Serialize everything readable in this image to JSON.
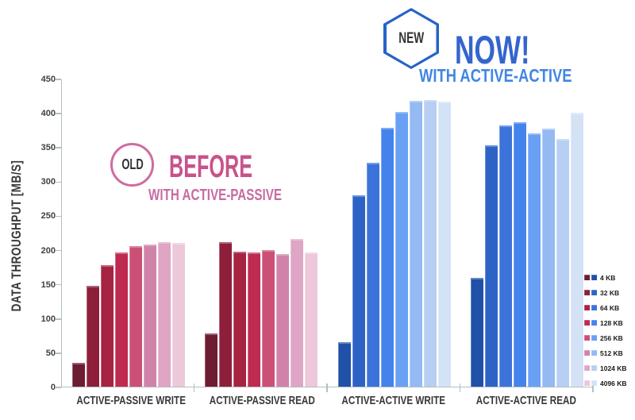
{
  "annotations": {
    "old": {
      "badge": "OLD",
      "title": "BEFORE",
      "subtitle": "WITH ACTIVE-PASSIVE"
    },
    "new": {
      "badge": "NEW",
      "title": "NOW!",
      "subtitle": "WITH ACTIVE-ACTIVE"
    }
  },
  "chart_data": {
    "type": "bar",
    "ylabel": "DATA THROUGHPUT [MB/S]",
    "ylim": [
      0,
      450
    ],
    "ytick_step": 50,
    "grid": false,
    "legend_position": "right",
    "categories": [
      "ACTIVE-PASSIVE WRITE",
      "ACTIVE-PASSIVE READ",
      "ACTIVE-ACTIVE WRITE",
      "ACTIVE-ACTIVE READ"
    ],
    "series": [
      {
        "name": "4 KB",
        "values": [
          35,
          78,
          65,
          159
        ]
      },
      {
        "name": "32 KB",
        "values": [
          147,
          211,
          279,
          353
        ]
      },
      {
        "name": "64 KB",
        "values": [
          177,
          197,
          327,
          381
        ]
      },
      {
        "name": "128 KB",
        "values": [
          196,
          196,
          378,
          386
        ]
      },
      {
        "name": "256 KB",
        "values": [
          205,
          199,
          401,
          370
        ]
      },
      {
        "name": "512 KB",
        "values": [
          208,
          194,
          417,
          377
        ]
      },
      {
        "name": "1024 KB",
        "values": [
          211,
          216,
          419,
          362
        ]
      },
      {
        "name": "4096 KB",
        "values": [
          210,
          196,
          416,
          400
        ]
      }
    ],
    "series_palettes": {
      "red": [
        "#6e1c31",
        "#8e1f3a",
        "#a62342",
        "#bf2b50",
        "#cc4f76",
        "#d083a9",
        "#dfa5c4",
        "#ecc8da"
      ],
      "blue": [
        "#2050a8",
        "#2e63c6",
        "#3b73da",
        "#4583ec",
        "#68a0f4",
        "#93baf2",
        "#b6cff2",
        "#d4e2f6"
      ]
    },
    "category_palette": [
      "red",
      "red",
      "blue",
      "blue"
    ]
  },
  "colors": {
    "background": "#ffffff",
    "axis": "#b4bfc1",
    "tick_text": "#404040",
    "category_text": "#383838",
    "legend_text": "#1a1a1a",
    "badge_text": "#333333",
    "pink_title": "#c8528a",
    "pink_subtitle": "#c86ba2",
    "pink_badge_border": "#d06ba0",
    "blue_title": "#3465cd",
    "blue_subtitle": "#4286e2",
    "blue_badge_border": "#2563c9"
  }
}
